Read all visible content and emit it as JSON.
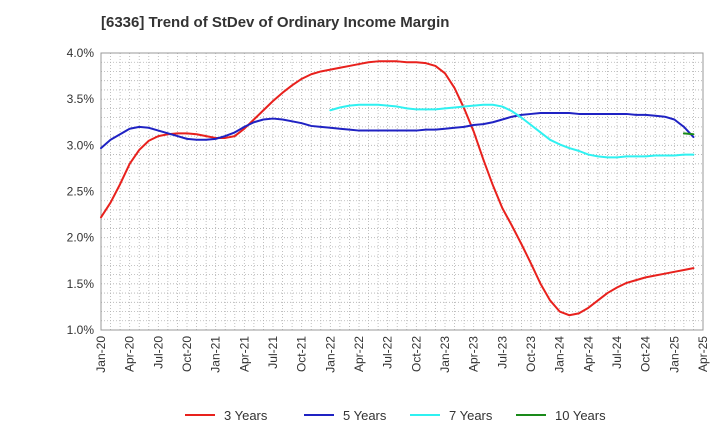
{
  "chart_data": {
    "type": "line",
    "title": "[6336]  Trend of StDev of Ordinary Income Margin",
    "xlabel": "",
    "ylabel": "",
    "ylim": [
      1.0,
      4.0
    ],
    "y_ticks": [
      "1.0%",
      "1.5%",
      "2.0%",
      "2.5%",
      "3.0%",
      "3.5%",
      "4.0%"
    ],
    "x_ticks": [
      "Jan-20",
      "Apr-20",
      "Jul-20",
      "Oct-20",
      "Jan-21",
      "Apr-21",
      "Jul-21",
      "Oct-21",
      "Jan-22",
      "Apr-22",
      "Jul-22",
      "Oct-22",
      "Jan-23",
      "Apr-23",
      "Jul-23",
      "Oct-23",
      "Jan-24",
      "Apr-24",
      "Jul-24",
      "Oct-24",
      "Jan-25",
      "Apr-25"
    ],
    "x_unit": "months since Jan-20",
    "grid": true,
    "legend_position": "bottom",
    "series": [
      {
        "name": "3 Years",
        "color": "#e8211d",
        "points": [
          [
            0,
            2.22
          ],
          [
            1,
            2.38
          ],
          [
            2,
            2.58
          ],
          [
            3,
            2.8
          ],
          [
            4,
            2.95
          ],
          [
            5,
            3.05
          ],
          [
            6,
            3.1
          ],
          [
            7,
            3.12
          ],
          [
            8,
            3.13
          ],
          [
            9,
            3.13
          ],
          [
            10,
            3.12
          ],
          [
            11,
            3.1
          ],
          [
            12,
            3.08
          ],
          [
            13,
            3.08
          ],
          [
            14,
            3.1
          ],
          [
            15,
            3.18
          ],
          [
            16,
            3.28
          ],
          [
            17,
            3.38
          ],
          [
            18,
            3.48
          ],
          [
            19,
            3.57
          ],
          [
            20,
            3.65
          ],
          [
            21,
            3.72
          ],
          [
            22,
            3.77
          ],
          [
            23,
            3.8
          ],
          [
            24,
            3.82
          ],
          [
            25,
            3.84
          ],
          [
            26,
            3.86
          ],
          [
            27,
            3.88
          ],
          [
            28,
            3.9
          ],
          [
            29,
            3.91
          ],
          [
            30,
            3.91
          ],
          [
            31,
            3.91
          ],
          [
            32,
            3.9
          ],
          [
            33,
            3.9
          ],
          [
            34,
            3.89
          ],
          [
            35,
            3.86
          ],
          [
            36,
            3.78
          ],
          [
            37,
            3.62
          ],
          [
            38,
            3.4
          ],
          [
            39,
            3.15
          ],
          [
            40,
            2.85
          ],
          [
            41,
            2.57
          ],
          [
            42,
            2.32
          ],
          [
            43,
            2.13
          ],
          [
            44,
            1.93
          ],
          [
            45,
            1.72
          ],
          [
            46,
            1.5
          ],
          [
            47,
            1.32
          ],
          [
            48,
            1.2
          ],
          [
            49,
            1.16
          ],
          [
            50,
            1.18
          ],
          [
            51,
            1.24
          ],
          [
            52,
            1.32
          ],
          [
            53,
            1.4
          ],
          [
            54,
            1.46
          ],
          [
            55,
            1.51
          ],
          [
            56,
            1.54
          ],
          [
            57,
            1.57
          ],
          [
            58,
            1.59
          ],
          [
            59,
            1.61
          ],
          [
            60,
            1.63
          ],
          [
            61,
            1.65
          ],
          [
            62,
            1.67
          ]
        ]
      },
      {
        "name": "5 Years",
        "color": "#1f22c3",
        "points": [
          [
            0,
            2.97
          ],
          [
            1,
            3.06
          ],
          [
            2,
            3.12
          ],
          [
            3,
            3.18
          ],
          [
            4,
            3.2
          ],
          [
            5,
            3.19
          ],
          [
            6,
            3.16
          ],
          [
            7,
            3.13
          ],
          [
            8,
            3.1
          ],
          [
            9,
            3.07
          ],
          [
            10,
            3.06
          ],
          [
            11,
            3.06
          ],
          [
            12,
            3.07
          ],
          [
            13,
            3.1
          ],
          [
            14,
            3.14
          ],
          [
            15,
            3.2
          ],
          [
            16,
            3.25
          ],
          [
            17,
            3.28
          ],
          [
            18,
            3.29
          ],
          [
            19,
            3.28
          ],
          [
            20,
            3.26
          ],
          [
            21,
            3.24
          ],
          [
            22,
            3.21
          ],
          [
            23,
            3.2
          ],
          [
            24,
            3.19
          ],
          [
            25,
            3.18
          ],
          [
            26,
            3.17
          ],
          [
            27,
            3.16
          ],
          [
            28,
            3.16
          ],
          [
            29,
            3.16
          ],
          [
            30,
            3.16
          ],
          [
            31,
            3.16
          ],
          [
            32,
            3.16
          ],
          [
            33,
            3.16
          ],
          [
            34,
            3.17
          ],
          [
            35,
            3.17
          ],
          [
            36,
            3.18
          ],
          [
            37,
            3.19
          ],
          [
            38,
            3.2
          ],
          [
            39,
            3.22
          ],
          [
            40,
            3.23
          ],
          [
            41,
            3.25
          ],
          [
            42,
            3.28
          ],
          [
            43,
            3.31
          ],
          [
            44,
            3.33
          ],
          [
            45,
            3.34
          ],
          [
            46,
            3.35
          ],
          [
            47,
            3.35
          ],
          [
            48,
            3.35
          ],
          [
            49,
            3.35
          ],
          [
            50,
            3.34
          ],
          [
            51,
            3.34
          ],
          [
            52,
            3.34
          ],
          [
            53,
            3.34
          ],
          [
            54,
            3.34
          ],
          [
            55,
            3.34
          ],
          [
            56,
            3.33
          ],
          [
            57,
            3.33
          ],
          [
            58,
            3.32
          ],
          [
            59,
            3.31
          ],
          [
            60,
            3.28
          ],
          [
            61,
            3.2
          ],
          [
            62,
            3.09
          ]
        ]
      },
      {
        "name": "7 Years",
        "color": "#2ff1f1",
        "points": [
          [
            24,
            3.38
          ],
          [
            25,
            3.41
          ],
          [
            26,
            3.43
          ],
          [
            27,
            3.44
          ],
          [
            28,
            3.44
          ],
          [
            29,
            3.44
          ],
          [
            30,
            3.43
          ],
          [
            31,
            3.42
          ],
          [
            32,
            3.4
          ],
          [
            33,
            3.39
          ],
          [
            34,
            3.39
          ],
          [
            35,
            3.39
          ],
          [
            36,
            3.4
          ],
          [
            37,
            3.41
          ],
          [
            38,
            3.42
          ],
          [
            39,
            3.43
          ],
          [
            40,
            3.44
          ],
          [
            41,
            3.44
          ],
          [
            42,
            3.42
          ],
          [
            43,
            3.37
          ],
          [
            44,
            3.3
          ],
          [
            45,
            3.22
          ],
          [
            46,
            3.14
          ],
          [
            47,
            3.06
          ],
          [
            48,
            3.01
          ],
          [
            49,
            2.97
          ],
          [
            50,
            2.94
          ],
          [
            51,
            2.9
          ],
          [
            52,
            2.88
          ],
          [
            53,
            2.87
          ],
          [
            54,
            2.87
          ],
          [
            55,
            2.88
          ],
          [
            56,
            2.88
          ],
          [
            57,
            2.88
          ],
          [
            58,
            2.89
          ],
          [
            59,
            2.89
          ],
          [
            60,
            2.89
          ],
          [
            61,
            2.9
          ],
          [
            62,
            2.9
          ]
        ]
      },
      {
        "name": "10 Years",
        "color": "#1a8a1a",
        "points": [
          [
            61,
            3.13
          ],
          [
            62,
            3.12
          ]
        ]
      }
    ]
  }
}
